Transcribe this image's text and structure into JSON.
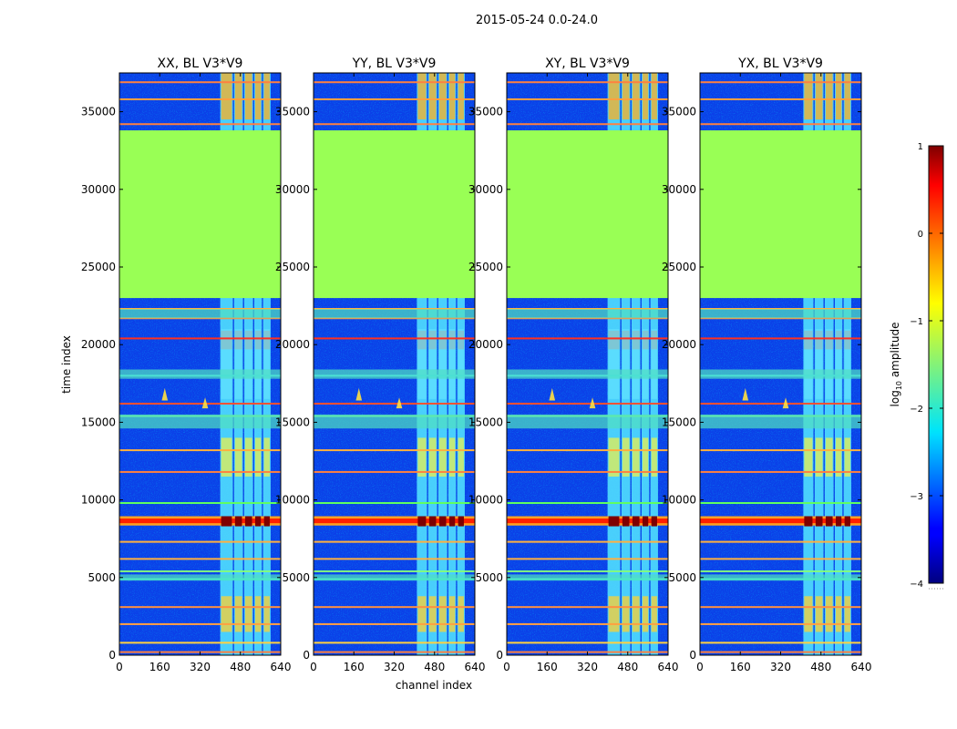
{
  "figure": {
    "suptitle": "2015-05-24 0.0-24.0"
  },
  "chart_data": [
    {
      "type": "heatmap",
      "title": "XX, BL V3*V9",
      "xlabel": "channel index",
      "ylabel": "time index",
      "xlim": [
        0,
        640
      ],
      "ylim": [
        0,
        37500
      ],
      "xticks": [
        0,
        160,
        320,
        480,
        640
      ],
      "yticks": [
        0,
        5000,
        10000,
        15000,
        20000,
        25000,
        30000,
        35000
      ],
      "flagged_time_range": [
        23000,
        33800
      ],
      "flagged_value_log10": -1.3
    },
    {
      "type": "heatmap",
      "title": "YY, BL V3*V9",
      "xlabel": "channel index",
      "ylabel": "",
      "xlim": [
        0,
        640
      ],
      "ylim": [
        0,
        37500
      ],
      "xticks": [
        0,
        160,
        320,
        480,
        640
      ],
      "yticks": [
        0,
        5000,
        10000,
        15000,
        20000,
        25000,
        30000,
        35000
      ],
      "flagged_time_range": [
        23000,
        33800
      ],
      "flagged_value_log10": -1.3
    },
    {
      "type": "heatmap",
      "title": "XY, BL V3*V9",
      "xlabel": "channel index",
      "ylabel": "",
      "xlim": [
        0,
        640
      ],
      "ylim": [
        0,
        37500
      ],
      "xticks": [
        0,
        160,
        320,
        480,
        640
      ],
      "yticks": [
        0,
        5000,
        10000,
        15000,
        20000,
        25000,
        30000,
        35000
      ],
      "flagged_time_range": [
        23000,
        33800
      ],
      "flagged_value_log10": -1.3
    },
    {
      "type": "heatmap",
      "title": "YX, BL V3*V9",
      "xlabel": "channel index",
      "ylabel": "",
      "xlim": [
        0,
        640
      ],
      "ylim": [
        0,
        37500
      ],
      "xticks": [
        0,
        160,
        320,
        480,
        640
      ],
      "yticks": [
        0,
        5000,
        10000,
        15000,
        20000,
        25000,
        30000,
        35000
      ],
      "flagged_time_range": [
        23000,
        33800
      ],
      "flagged_value_log10": -1.3
    }
  ],
  "colorbar": {
    "label": "log",
    "label_sub": "10",
    "label_rest": " amplitude",
    "ticks": [
      1,
      0,
      -1,
      -2,
      -3,
      -4
    ],
    "tick_labels": [
      "1",
      "0",
      "−1",
      "−2",
      "−3",
      "−4"
    ],
    "range": [
      -4,
      1
    ]
  },
  "colors": {
    "flagged": "#99ff55",
    "background": "#ffffff"
  }
}
